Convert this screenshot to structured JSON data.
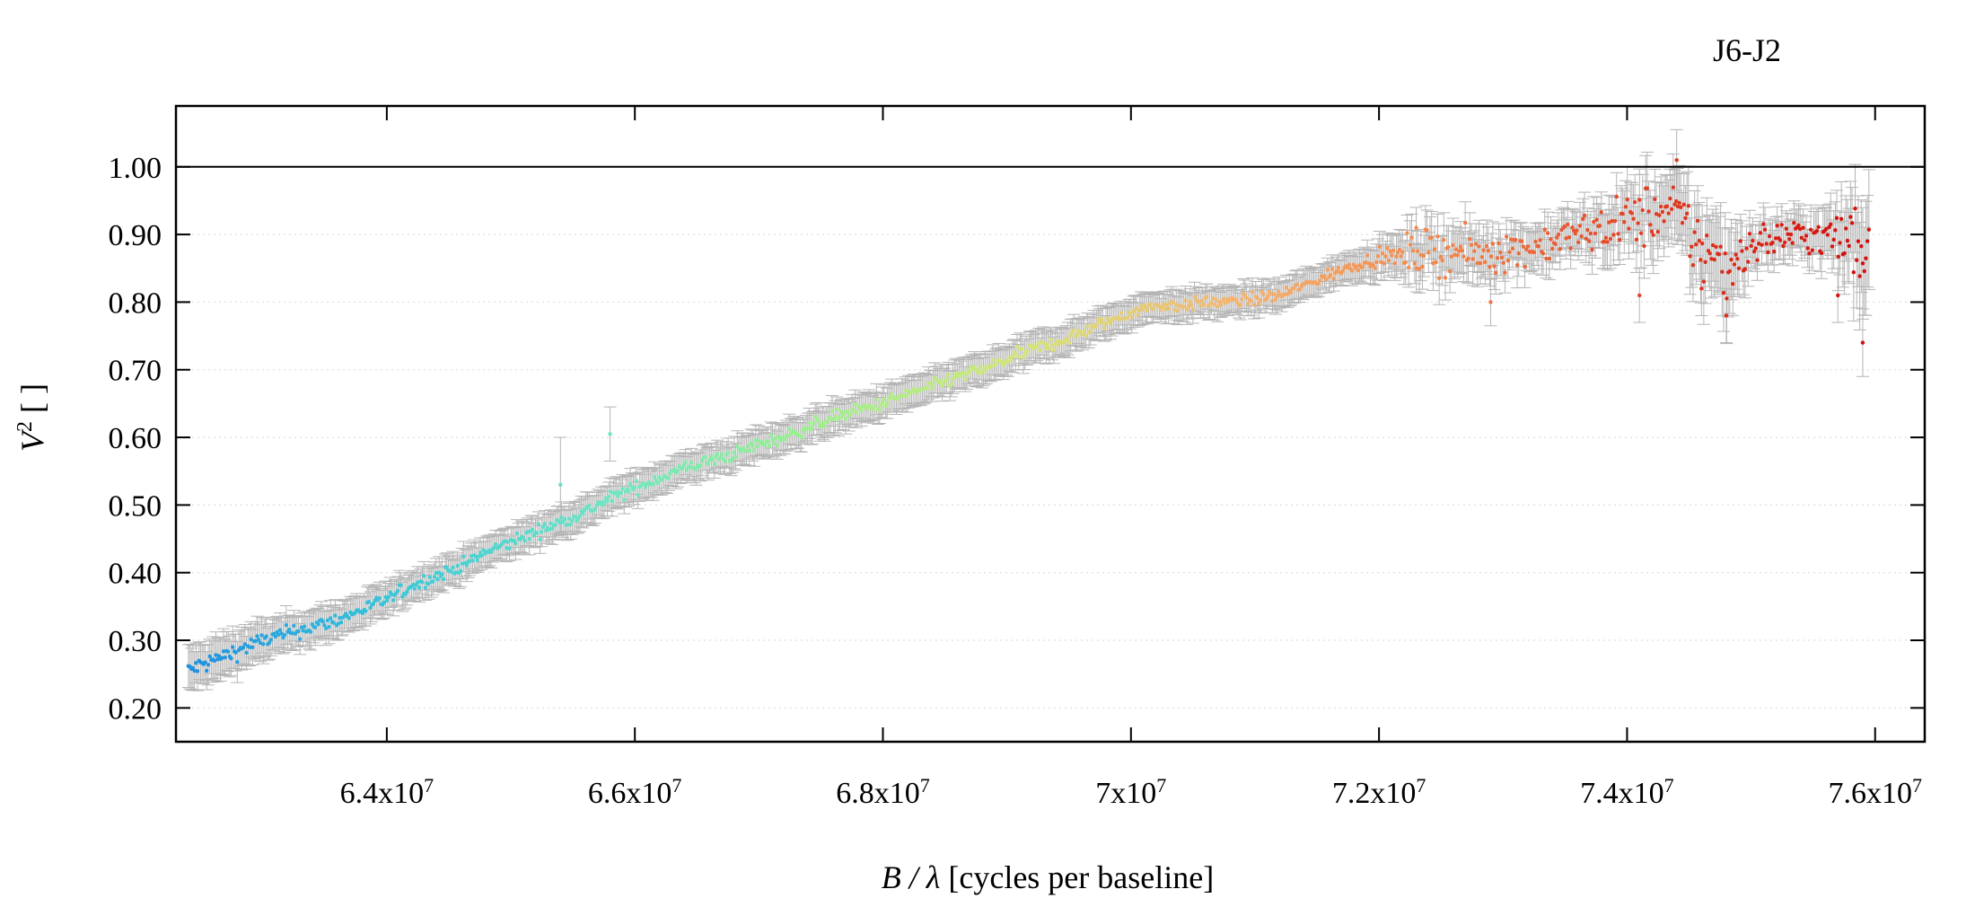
{
  "chart_data": {
    "type": "scatter",
    "title": "J6-J2",
    "xlabel_italic": "B / λ",
    "xlabel_rest": " [cycles per baseline]",
    "ylabel_italic": "V",
    "ylabel_sup": "2",
    "ylabel_rest": " [ ]",
    "xlim": [
      62300000,
      76400000
    ],
    "ylim": [
      0.15,
      1.09
    ],
    "x_ticks": [
      {
        "value": 64000000,
        "mant": "6.4x10",
        "exp": "7"
      },
      {
        "value": 66000000,
        "mant": "6.6x10",
        "exp": "7"
      },
      {
        "value": 68000000,
        "mant": "6.8x10",
        "exp": "7"
      },
      {
        "value": 70000000,
        "mant": "7x10",
        "exp": "7"
      },
      {
        "value": 72000000,
        "mant": "7.2x10",
        "exp": "7"
      },
      {
        "value": 74000000,
        "mant": "7.4x10",
        "exp": "7"
      },
      {
        "value": 76000000,
        "mant": "7.6x10",
        "exp": "7"
      }
    ],
    "y_ticks": [
      {
        "value": 0.2,
        "label": "0.20"
      },
      {
        "value": 0.3,
        "label": "0.30"
      },
      {
        "value": 0.4,
        "label": "0.40"
      },
      {
        "value": 0.5,
        "label": "0.50"
      },
      {
        "value": 0.6,
        "label": "0.60"
      },
      {
        "value": 0.7,
        "label": "0.70"
      },
      {
        "value": 0.8,
        "label": "0.80"
      },
      {
        "value": 0.9,
        "label": "0.90"
      },
      {
        "value": 1.0,
        "label": "1.00"
      }
    ],
    "reference_line": 1.0,
    "grid": "horizontal dotted",
    "error_bar_color": "#b4b4b4",
    "colormap": [
      "#1e90e0",
      "#3cc8d8",
      "#6ee6c4",
      "#9ef08c",
      "#d6e47a",
      "#f5b470",
      "#f2844a",
      "#e03a20",
      "#d40c0c"
    ],
    "series": [
      {
        "x": [
          62400000,
          62600000,
          62800000,
          63000000,
          63200000,
          63400000,
          63600000,
          63800000,
          64000000,
          64200000,
          64400000,
          64600000,
          64800000,
          65000000,
          65200000,
          65400000,
          65600000,
          65800000,
          66000000,
          66200000,
          66400000,
          66600000,
          66800000,
          67000000,
          67200000,
          67400000,
          67600000,
          67800000,
          68000000,
          68200000,
          68400000,
          68600000,
          68800000,
          69000000,
          69200000,
          69400000,
          69600000,
          69800000,
          70000000,
          70200000,
          70400000,
          70600000,
          70800000,
          71000000,
          71200000,
          71400000,
          71600000,
          71800000,
          72000000,
          72200000,
          72400000,
          72600000,
          72800000,
          73000000,
          73200000,
          73400000,
          73600000,
          73800000,
          74000000,
          74200000,
          74400000,
          74600000,
          74800000,
          75000000,
          75200000,
          75400000,
          75600000,
          75800000,
          75950000
        ],
        "y": [
          0.255,
          0.27,
          0.285,
          0.3,
          0.31,
          0.32,
          0.33,
          0.345,
          0.36,
          0.38,
          0.395,
          0.41,
          0.43,
          0.445,
          0.46,
          0.475,
          0.49,
          0.51,
          0.525,
          0.54,
          0.555,
          0.565,
          0.575,
          0.59,
          0.6,
          0.615,
          0.63,
          0.64,
          0.65,
          0.665,
          0.675,
          0.69,
          0.7,
          0.715,
          0.73,
          0.74,
          0.755,
          0.77,
          0.785,
          0.795,
          0.795,
          0.8,
          0.8,
          0.805,
          0.81,
          0.825,
          0.84,
          0.855,
          0.865,
          0.87,
          0.875,
          0.875,
          0.87,
          0.875,
          0.88,
          0.89,
          0.9,
          0.91,
          0.92,
          0.93,
          0.93,
          0.88,
          0.85,
          0.885,
          0.895,
          0.9,
          0.895,
          0.89,
          0.885
        ],
        "err": [
          0.03,
          0.03,
          0.028,
          0.026,
          0.025,
          0.024,
          0.023,
          0.022,
          0.022,
          0.021,
          0.021,
          0.021,
          0.021,
          0.021,
          0.021,
          0.021,
          0.021,
          0.021,
          0.021,
          0.021,
          0.021,
          0.021,
          0.021,
          0.021,
          0.021,
          0.021,
          0.021,
          0.021,
          0.021,
          0.021,
          0.021,
          0.021,
          0.021,
          0.021,
          0.021,
          0.021,
          0.021,
          0.021,
          0.02,
          0.02,
          0.02,
          0.02,
          0.02,
          0.02,
          0.02,
          0.02,
          0.02,
          0.02,
          0.025,
          0.03,
          0.035,
          0.035,
          0.035,
          0.03,
          0.03,
          0.03,
          0.03,
          0.035,
          0.045,
          0.05,
          0.05,
          0.06,
          0.06,
          0.03,
          0.03,
          0.03,
          0.035,
          0.06,
          0.08
        ]
      }
    ],
    "outliers": [
      {
        "x": 65400000,
        "y": 0.53,
        "err": 0.07
      },
      {
        "x": 65800000,
        "y": 0.605,
        "err": 0.04
      },
      {
        "x": 72300000,
        "y": 0.91,
        "err": 0.03
      },
      {
        "x": 72900000,
        "y": 0.8,
        "err": 0.035
      },
      {
        "x": 74100000,
        "y": 0.81,
        "err": 0.04
      },
      {
        "x": 74400000,
        "y": 1.01,
        "err": 0.045
      },
      {
        "x": 74600000,
        "y": 0.82,
        "err": 0.04
      },
      {
        "x": 74800000,
        "y": 0.78,
        "err": 0.04
      },
      {
        "x": 75700000,
        "y": 0.81,
        "err": 0.04
      },
      {
        "x": 75900000,
        "y": 0.74,
        "err": 0.05
      }
    ]
  }
}
